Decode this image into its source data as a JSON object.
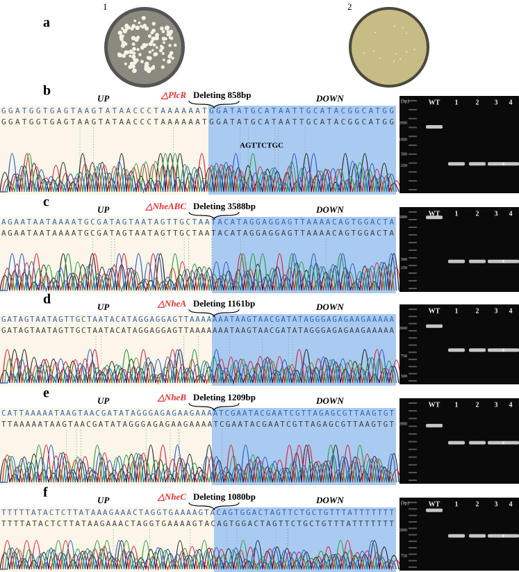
{
  "panel_a": {
    "label": "a",
    "plates": [
      "1",
      "2"
    ]
  },
  "panels": [
    {
      "label": "b",
      "up": "UP",
      "gene": "△PlcR",
      "deleting": "Deleting 858bp",
      "down": "DOWN",
      "seq_top": "GGATGGTGAGTAAGTATAACCCTAAAAAATGGATATGCATAATTGCATACGGCATGG",
      "seq_bottom": "GGATGGTGAGTAAGTATAACCCTAAAAAATGGATATGCATAATTGCATACGGCATGG",
      "annotation": "AGTTCTGC",
      "gel": {
        "unit": "(bp)",
        "ladder": [
          "2000",
          "1000",
          "500",
          "250"
        ],
        "lanes": [
          "WT",
          "1",
          "2",
          "3",
          "4"
        ]
      }
    },
    {
      "label": "c",
      "up": "UP",
      "gene": "△NheABC",
      "deleting": "Deleting 3588bp",
      "down": "DOWN",
      "seq_top": "AGAATAATAAAATGCGATAGTAATAGTTGCTAATACATAGGAGGAGTTAAAACAGTGGACTA",
      "seq_bottom": "AGAATAATAAAATGCGATAGTAATAGTTGCTAATACATAGGAGGAGTTAAAACAGTGGACTA",
      "gel": {
        "ladder": [
          "5000",
          "500",
          "250"
        ],
        "lanes": [
          "WT",
          "1",
          "2",
          "3",
          "4"
        ]
      }
    },
    {
      "label": "d",
      "up": "UP",
      "gene": "△NheA",
      "deleting": "Deleting 1161bp",
      "down": "DOWN",
      "seq_top": "GATAGTAATAGTTGCTAATACATAGGAGGAGTTAAAAAAATAAGTAACGATATAGGGAGAGAAGAAAAA",
      "seq_bottom": "GATAGTAATAGTTGCTAATACATAGGAGGAGTTAAAAAAATAAGTAACGATATAGGGAGAGAAGAAAAA",
      "gel": {
        "ladder": [
          "2000",
          "750",
          "500"
        ],
        "lanes": [
          "WT",
          "1",
          "2",
          "3",
          "4"
        ]
      }
    },
    {
      "label": "e",
      "up": "UP",
      "gene": "△NheB",
      "deleting": "Deleting 1209bp",
      "down": "DOWN",
      "seq_top": "CATTAAAAATAAGTAACGATATAGGGAGAGAAGAAAATCGAATACGAATCGTTAGAGCGTTAAGTGT",
      "seq_bottom": "TTAAAAATAAGTAACGATATAGGGAGAGAAGAAAATCGAATACGAATCGTTAGAGCGTTAAGTGT",
      "gel": {
        "ladder": [
          "2000"
        ],
        "lanes": [
          "WT",
          "1",
          "2",
          "3",
          "4"
        ]
      }
    },
    {
      "label": "f",
      "up": "UP",
      "gene": "△NheC",
      "deleting": "Deleting 1080bp",
      "down": "DOWN",
      "seq_top": "TTTTTATACTCTTATAAAGAAACTAGGTGAAAAGTACAGTGGACTAGTTCTGCTGTTTATTTTTTT",
      "seq_bottom": "TTTTATACTCTTATAAGAAACTAGGTGAAAAGTACAGTGGACTAGTTCTGCTGTTTATTTTTTT",
      "gel": {
        "unit": "(bp)",
        "ladder": [
          "2000",
          "750"
        ],
        "lanes": [
          "WT",
          "1",
          "2",
          "3",
          "4"
        ]
      }
    }
  ]
}
